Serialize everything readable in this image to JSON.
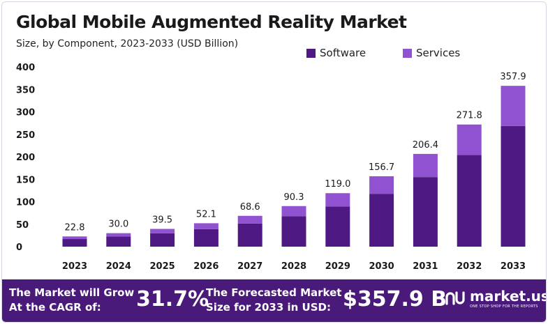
{
  "chart_data": {
    "type": "bar",
    "stacked": true,
    "title": "Global Mobile Augmented Reality Market",
    "subtitle": "Size, by Component, 2023-2033 (USD Billion)",
    "categories": [
      "2023",
      "2024",
      "2025",
      "2026",
      "2027",
      "2028",
      "2029",
      "2030",
      "2031",
      "2032",
      "2033"
    ],
    "totals": [
      "22.8",
      "30.0",
      "39.5",
      "52.1",
      "68.6",
      "90.3",
      "119.0",
      "156.7",
      "206.4",
      "271.8",
      "357.9"
    ],
    "series": [
      {
        "name": "Software",
        "color": "#4f1983",
        "values": [
          17.0,
          22.4,
          29.6,
          39.1,
          51.5,
          67.8,
          89.3,
          117.6,
          154.8,
          203.8,
          268.4
        ]
      },
      {
        "name": "Services",
        "color": "#9152d1",
        "values": [
          5.8,
          7.6,
          9.9,
          13.0,
          17.1,
          22.5,
          29.7,
          39.1,
          51.6,
          68.0,
          89.5
        ]
      }
    ],
    "yticks": [
      0,
      50,
      100,
      150,
      200,
      250,
      300,
      350,
      400
    ],
    "ylim": [
      0,
      400
    ],
    "xlabel": "",
    "ylabel": "",
    "grid": false,
    "legend_position": "top-right"
  },
  "footer": {
    "grow_line1": "The Market will Grow",
    "grow_line2": "At the CAGR of:",
    "cagr": "31.7%",
    "forecast_line1": "The Forecasted Market",
    "forecast_line2": "Size for 2033 in USD:",
    "forecast_value": "$357.9 B",
    "brand_name": "market.us",
    "brand_tagline": "ONE STOP SHOP FOR THE REPORTS"
  },
  "colors": {
    "footer_bg": "#4a1a7a",
    "software": "#4f1983",
    "services": "#9152d1"
  }
}
